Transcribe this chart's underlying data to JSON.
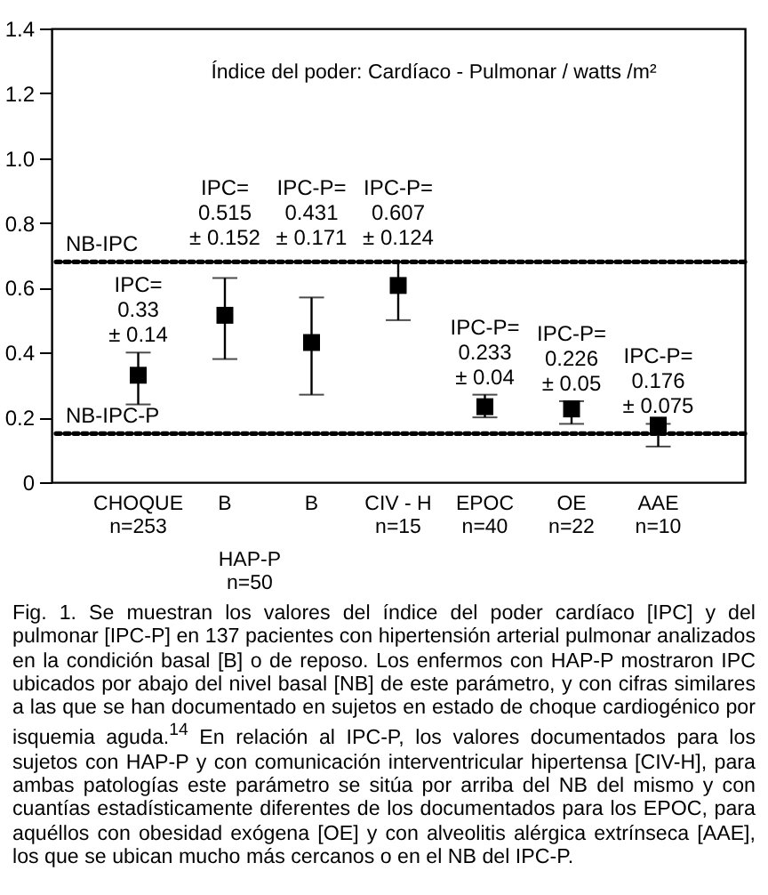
{
  "chart_data": {
    "type": "scatter",
    "title": "Índice del poder:  Cardíaco - Pulmonar /  watts /m²",
    "categories": [
      "CHOQUE\nn=253",
      "B",
      "B",
      "CIV - H\nn=15",
      "EPOC\nn=40",
      "OE\nn=22",
      "AAE\nn=10"
    ],
    "values": [
      0.33,
      0.515,
      0.431,
      0.607,
      0.233,
      0.226,
      0.176
    ],
    "errors": [
      [
        0.24,
        0.4
      ],
      [
        0.38,
        0.63
      ],
      [
        0.27,
        0.57
      ],
      [
        0.5,
        0.68
      ],
      [
        0.2,
        0.27
      ],
      [
        0.18,
        0.25
      ],
      [
        0.11,
        0.18
      ]
    ],
    "value_labels": [
      "IPC=\n0.33\n± 0.14",
      "IPC=\n0.515\n± 0.152",
      "IPC-P=\n0.431\n± 0.171",
      "IPC-P=\n0.607\n± 0.124",
      "IPC-P=\n0.233\n± 0.04",
      "IPC-P=\n0.226\n± 0.05",
      "IPC-P=\n0.176\n± 0.075"
    ],
    "ylim": [
      0,
      1.4
    ],
    "yticks": [
      0,
      0.2,
      0.4,
      0.6,
      0.8,
      {
        "value": 1,
        "label": "1.0"
      },
      1.2,
      1.4
    ],
    "grid": false,
    "marker": "square",
    "ref_lines": [
      {
        "axis": "y",
        "value": 0.68,
        "label": "NB-IPC",
        "line_style": "dotted",
        "color": "#000000"
      },
      {
        "axis": "y",
        "value": 0.15,
        "label": "NB-IPC-P",
        "line_style": "dotted",
        "color": "#000000"
      }
    ],
    "annotations": [
      "HAP-P\nn=50",
      "Fig. 1. Se muestran los valores del índice del poder cardíaco [IPC] y del pulmonar [IPC-P] en 137 pacientes con hipertensión arterial pulmonar analizados en la condición basal [B] o de reposo. Los enfermos con HAP-P mostraron IPC ubicados por abajo del nivel basal [NB] de este parámetro, y con cifras similares a las que se han documentado en sujetos en estado de choque cardiogénico por isquemia aguda.$^{14}$ En relación al IPC-P, los valores documentados para los sujetos con HAP-P y con comunicación interventricular hipertensa [CIV-H], para ambas patologías este parámetro se sitúa por arriba del NB del mismo y con cuantías estadísticamente diferentes de los documentados para los EPOC, para aquéllos con obesidad exógena [OE] y con alveolitis alérgica extrínseca [AAE], los que se ubican mucho más cercanos o en el NB del IPC-P."
    ]
  }
}
